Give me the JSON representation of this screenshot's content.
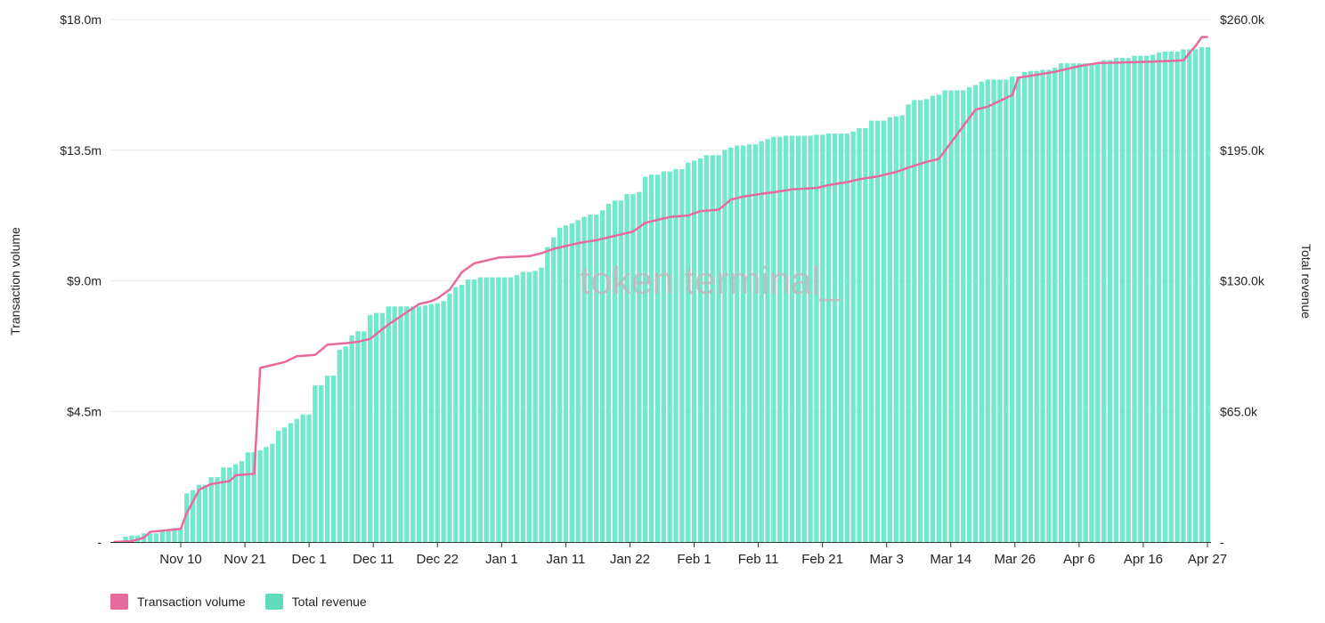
{
  "chart_data": {
    "type": "bar",
    "watermark": "token terminal_",
    "x_ticks": [
      "Nov 10",
      "Nov 21",
      "Dec 1",
      "Dec 11",
      "Dec 22",
      "Jan 1",
      "Jan 11",
      "Jan 22",
      "Feb 1",
      "Feb 11",
      "Feb 21",
      "Mar 3",
      "Mar 14",
      "Mar 26",
      "Apr 6",
      "Apr 16",
      "Apr 27"
    ],
    "left_axis": {
      "label": "Transaction volume",
      "ticks": [
        "-",
        "$4.5m",
        "$9.0m",
        "$13.5m",
        "$18.0m"
      ],
      "ylim": [
        0,
        18000000
      ]
    },
    "right_axis": {
      "label": "Total revenue",
      "ticks": [
        "-",
        "$65.0k",
        "$130.0k",
        "$195.0k",
        "$260.0k"
      ],
      "ylim": [
        0,
        260000
      ]
    },
    "grid": true,
    "legend_placement": "bottom-left",
    "colors": {
      "bar": "#74e8cc",
      "line": "#e8699c",
      "grid": "#e9e9e9",
      "watermark": "#bcbcbc"
    },
    "series": [
      {
        "name": "Transaction volume",
        "kind": "line",
        "axis": "left",
        "points": [
          [
            0,
            0
          ],
          [
            3,
            0.03
          ],
          [
            5,
            0.15
          ],
          [
            6,
            0.35
          ],
          [
            11,
            0.45
          ],
          [
            12,
            1.0
          ],
          [
            14,
            1.8
          ],
          [
            16,
            2.0
          ],
          [
            19,
            2.1
          ],
          [
            20,
            2.3
          ],
          [
            23,
            2.35
          ],
          [
            24,
            6.0
          ],
          [
            26,
            6.1
          ],
          [
            28,
            6.2
          ],
          [
            30,
            6.4
          ],
          [
            33,
            6.45
          ],
          [
            35,
            6.8
          ],
          [
            38,
            6.85
          ],
          [
            40,
            6.9
          ],
          [
            42,
            7.0
          ],
          [
            45,
            7.5
          ],
          [
            50,
            8.2
          ],
          [
            52,
            8.3
          ],
          [
            53,
            8.4
          ],
          [
            55,
            8.7
          ],
          [
            57,
            9.3
          ],
          [
            59,
            9.6
          ],
          [
            61,
            9.7
          ],
          [
            63,
            9.8
          ],
          [
            68,
            9.85
          ],
          [
            70,
            9.95
          ],
          [
            72,
            10.1
          ],
          [
            74,
            10.2
          ],
          [
            76,
            10.3
          ],
          [
            79,
            10.4
          ],
          [
            82,
            10.55
          ],
          [
            85,
            10.7
          ],
          [
            87,
            11.0
          ],
          [
            89,
            11.1
          ],
          [
            91,
            11.2
          ],
          [
            94,
            11.25
          ],
          [
            96,
            11.4
          ],
          [
            99,
            11.45
          ],
          [
            101,
            11.8
          ],
          [
            103,
            11.9
          ],
          [
            106,
            12.0
          ],
          [
            108,
            12.05
          ],
          [
            111,
            12.15
          ],
          [
            115,
            12.2
          ],
          [
            117,
            12.3
          ],
          [
            120,
            12.4
          ],
          [
            122,
            12.5
          ],
          [
            125,
            12.6
          ],
          [
            128,
            12.75
          ],
          [
            130,
            12.9
          ],
          [
            133,
            13.1
          ],
          [
            135,
            13.2
          ],
          [
            141,
            14.9
          ],
          [
            143,
            15.0
          ],
          [
            145,
            15.2
          ],
          [
            147,
            15.4
          ],
          [
            148,
            16.0
          ],
          [
            151,
            16.1
          ],
          [
            154,
            16.2
          ],
          [
            156,
            16.3
          ],
          [
            158,
            16.4
          ],
          [
            161,
            16.5
          ],
          [
            170,
            16.55
          ],
          [
            175,
            16.6
          ],
          [
            177,
            17.1
          ],
          [
            178,
            17.4
          ],
          [
            179,
            17.4
          ]
        ]
      },
      {
        "name": "Total revenue",
        "kind": "bar",
        "axis": "right",
        "steps": [
          [
            0,
            0.02
          ],
          [
            2,
            0.5
          ],
          [
            3,
            0.6
          ],
          [
            5,
            0.8
          ],
          [
            8,
            1.0
          ],
          [
            10,
            1.3
          ],
          [
            12,
            4.5
          ],
          [
            13,
            4.8
          ],
          [
            14,
            5.3
          ],
          [
            16,
            6.0
          ],
          [
            18,
            6.9
          ],
          [
            20,
            7.2
          ],
          [
            21,
            7.5
          ],
          [
            22,
            8.3
          ],
          [
            24,
            8.5
          ],
          [
            25,
            8.8
          ],
          [
            26,
            9.1
          ],
          [
            27,
            10.3
          ],
          [
            28,
            10.6
          ],
          [
            29,
            11.0
          ],
          [
            30,
            11.4
          ],
          [
            31,
            11.8
          ],
          [
            33,
            14.5
          ],
          [
            35,
            15.4
          ],
          [
            37,
            17.8
          ],
          [
            38,
            18.1
          ],
          [
            39,
            19.1
          ],
          [
            40,
            19.5
          ],
          [
            42,
            21.0
          ],
          [
            43,
            21.2
          ],
          [
            45,
            21.8
          ],
          [
            51,
            21.9
          ],
          [
            52,
            22.0
          ],
          [
            53,
            22.1
          ],
          [
            54,
            22.3
          ],
          [
            55,
            23.0
          ],
          [
            56,
            23.6
          ],
          [
            57,
            23.8
          ],
          [
            58,
            24.3
          ],
          [
            60,
            24.5
          ],
          [
            66,
            24.7
          ],
          [
            67,
            25.0
          ],
          [
            69,
            25.1
          ],
          [
            70,
            25.4
          ],
          [
            71,
            27.3
          ],
          [
            72,
            28.2
          ],
          [
            73,
            29.1
          ],
          [
            74,
            29.3
          ],
          [
            75,
            29.5
          ],
          [
            76,
            29.8
          ],
          [
            77,
            30.1
          ],
          [
            78,
            30.3
          ],
          [
            80,
            30.7
          ],
          [
            81,
            31.3
          ],
          [
            82,
            31.6
          ],
          [
            84,
            32.2
          ],
          [
            86,
            32.4
          ],
          [
            87,
            33.8
          ],
          [
            88,
            34.0
          ],
          [
            90,
            34.3
          ],
          [
            92,
            34.5
          ],
          [
            94,
            35.1
          ],
          [
            95,
            35.3
          ],
          [
            96,
            35.5
          ],
          [
            97,
            35.8
          ],
          [
            100,
            36.3
          ],
          [
            101,
            36.5
          ],
          [
            102,
            36.7
          ],
          [
            104,
            36.8
          ],
          [
            106,
            37.1
          ],
          [
            107,
            37.3
          ],
          [
            108,
            37.5
          ],
          [
            110,
            37.6
          ],
          [
            115,
            37.7
          ],
          [
            117,
            37.8
          ],
          [
            121,
            38.0
          ],
          [
            122,
            38.3
          ],
          [
            124,
            39.0
          ],
          [
            127,
            39.3
          ],
          [
            128,
            39.4
          ],
          [
            129,
            39.5
          ],
          [
            130,
            40.5
          ],
          [
            131,
            40.9
          ],
          [
            133,
            41.0
          ],
          [
            134,
            41.3
          ],
          [
            135,
            41.4
          ],
          [
            136,
            41.8
          ],
          [
            140,
            42.1
          ],
          [
            141,
            42.3
          ],
          [
            142,
            42.6
          ],
          [
            143,
            42.8
          ],
          [
            147,
            43.1
          ],
          [
            149,
            43.5
          ],
          [
            150,
            43.6
          ],
          [
            152,
            43.7
          ],
          [
            154,
            43.9
          ],
          [
            155,
            44.3
          ],
          [
            161,
            44.4
          ],
          [
            162,
            44.6
          ],
          [
            164,
            44.8
          ],
          [
            167,
            45.0
          ],
          [
            170,
            45.1
          ],
          [
            171,
            45.3
          ],
          [
            172,
            45.4
          ],
          [
            173,
            45.4
          ],
          [
            175,
            45.6
          ],
          [
            178,
            45.8
          ],
          [
            179,
            45.8
          ]
        ]
      }
    ]
  }
}
